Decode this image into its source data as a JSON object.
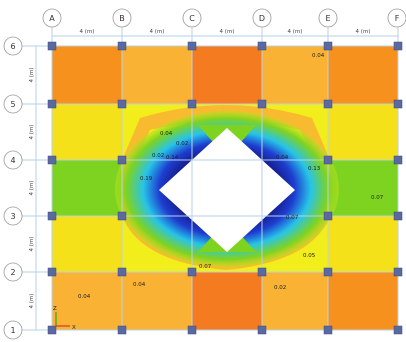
{
  "grid": {
    "column_labels": [
      "A",
      "B",
      "C",
      "D",
      "E",
      "F"
    ],
    "row_labels": [
      "6",
      "5",
      "4",
      "3",
      "2",
      "1"
    ],
    "top_dims": [
      "4 (m)",
      "4 (m)",
      "4 (m)",
      "4 (m)",
      "4 (m)"
    ],
    "side_dims": [
      "4 (m)",
      "4 (m)",
      "4 (m)",
      "4 (m)",
      "4 (m)"
    ]
  },
  "contour_values": {
    "v1": "0.04",
    "v2": "0.04",
    "v3": "0.02",
    "v4": "0.02",
    "v5": "0.14",
    "v6": "0.04",
    "v7": "0.19",
    "v8": "0.13",
    "v9": "0.07",
    "v10": "0.07",
    "v11": "0.07",
    "v12": "0.05",
    "v13": "0.04",
    "v14": "0.04",
    "v15": "0.02"
  },
  "axis": {
    "z": "Z",
    "x": "X"
  },
  "colors": {
    "orange": "#f7911e",
    "light_orange": "#f9b233",
    "yellow": "#f2ee1c",
    "green": "#7ed321",
    "cyan": "#27c4e8",
    "blue": "#1e3dd0",
    "dark_blue": "#14157a",
    "grid_line": "#b7d2e8",
    "column_node": "#5a6aa0"
  }
}
